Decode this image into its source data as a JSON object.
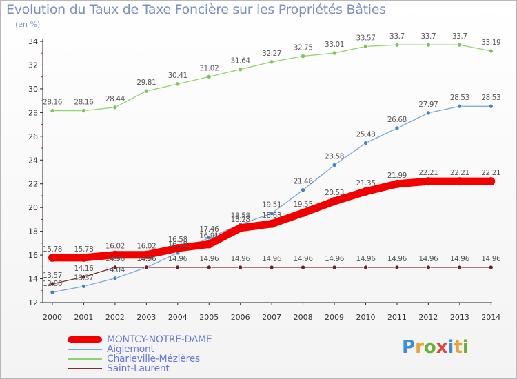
{
  "title": "Evolution du Taux de Taxe Foncière sur les Propriétés Bâties",
  "subtitle": "(en %)",
  "logo": {
    "letters": [
      "P",
      "r",
      "o",
      "x",
      "i",
      "t",
      "i"
    ],
    "colors": [
      "#3a8fd6",
      "#f0a030",
      "#66b33a",
      "#e0463c",
      "#3a8fd6",
      "#f0a030",
      "#66b33a"
    ]
  },
  "chart_data": {
    "type": "line",
    "title": "Evolution du Taux de Taxe Foncière sur les Propriétés Bâties",
    "ylabel": "(en %)",
    "x": [
      "2000",
      "2001",
      "2002",
      "2003",
      "2004",
      "2005",
      "2006",
      "2007",
      "2008",
      "2009",
      "2010",
      "2011",
      "2012",
      "2013",
      "2014"
    ],
    "ylim": [
      12,
      34
    ],
    "yticks": [
      12,
      14,
      16,
      18,
      20,
      22,
      24,
      26,
      28,
      30,
      32,
      34
    ],
    "series": [
      {
        "name": "Charleville-Mézières",
        "color": "#8fd46a",
        "point_color": "#7cc458",
        "values": [
          28.16,
          28.16,
          28.44,
          29.81,
          30.41,
          31.02,
          31.64,
          32.27,
          32.75,
          33.01,
          33.57,
          33.7,
          33.7,
          33.7,
          33.19
        ],
        "labels": [
          "28.16",
          "28.16",
          "28.44",
          "29.81",
          "30.41",
          "31.02",
          "31.64",
          "32.27",
          "32.75",
          "33.01",
          "33.57",
          "33.7",
          "33.7",
          "33.7",
          "33.19"
        ]
      },
      {
        "name": "Aiglemont",
        "color": "#7aa6d8",
        "point_color": "#3d86c4",
        "values": [
          12.86,
          13.37,
          14.04,
          14.96,
          16.18,
          17.46,
          18.58,
          19.51,
          21.48,
          23.58,
          25.43,
          26.68,
          27.97,
          28.53,
          28.53
        ],
        "labels": [
          "12.86",
          "13.37",
          "14.04",
          "14.96",
          "16.18",
          "17.46",
          "18.58",
          "19.51",
          "21.48",
          "23.58",
          "25.43",
          "26.68",
          "27.97",
          "28.53",
          "28.53"
        ]
      },
      {
        "name": "Saint-Laurent",
        "color": "#7a2e2e",
        "point_color": "#6a2222",
        "values": [
          13.57,
          14.16,
          14.96,
          14.96,
          14.96,
          14.96,
          14.96,
          14.96,
          14.96,
          14.96,
          14.96,
          14.96,
          14.96,
          14.96,
          14.96
        ],
        "labels": [
          "13.57",
          "14.16",
          "14.96",
          "14.96",
          "14.96",
          "14.96",
          "14.96",
          "14.96",
          "14.96",
          "14.96",
          "14.96",
          "14.96",
          "14.96",
          "14.96",
          "14.96"
        ]
      },
      {
        "name": "MONTCY-NOTRE-DAME",
        "color": "#f20000",
        "point_color": "#ee0000",
        "values": [
          15.78,
          15.78,
          16.02,
          16.02,
          16.58,
          16.91,
          18.28,
          18.63,
          19.55,
          20.53,
          21.35,
          21.99,
          22.21,
          22.21,
          22.21
        ],
        "labels": [
          "15.78",
          "15.78",
          "16.02",
          "16.02",
          "16.58",
          "16.91",
          "18.28",
          "18.63",
          "19.55",
          "20.53",
          "21.35",
          "21.99",
          "22.21",
          "22.21",
          "22.21"
        ]
      }
    ],
    "legend": [
      {
        "name": "MONTCY-NOTRE-DAME",
        "color": "#f20000",
        "thick": true
      },
      {
        "name": "Aiglemont",
        "color": "#7aa6d8",
        "thick": false
      },
      {
        "name": "Charleville-Mézières",
        "color": "#8fd46a",
        "thick": false
      },
      {
        "name": "Saint-Laurent",
        "color": "#7a2e2e",
        "thick": false
      }
    ],
    "grid": false
  }
}
